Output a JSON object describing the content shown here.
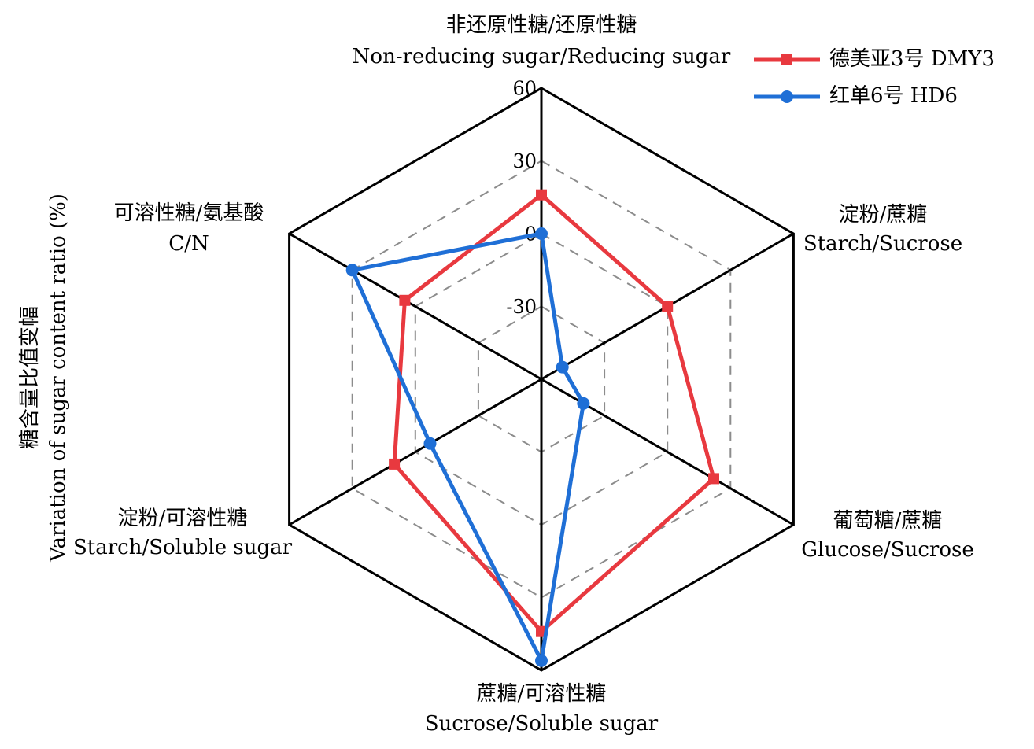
{
  "chart_data": {
    "type": "radar",
    "ylabel_cn": "糖含量比值变幅",
    "ylabel_en": "Variation of sugar content ratio (%)",
    "range": [
      -60,
      60
    ],
    "ticks": [
      "-30",
      "0",
      "30",
      "60"
    ],
    "tick_values": [
      -30,
      0,
      30,
      60
    ],
    "axes": [
      {
        "cn": "非还原性糖/还原性糖",
        "en": "Non-reducing sugar/Reducing sugar"
      },
      {
        "cn": "淀粉/蔗糖",
        "en": "Starch/Sucrose"
      },
      {
        "cn": "葡萄糖/蔗糖",
        "en": "Glucose/Sucrose"
      },
      {
        "cn": "蔗糖/可溶性糖",
        "en": "Sucrose/Soluble sugar"
      },
      {
        "cn": "淀粉/可溶性糖",
        "en": "Starch/Soluble sugar"
      },
      {
        "cn": "可溶性糖/氨基酸",
        "en": "C/N"
      }
    ],
    "series": [
      {
        "name": "德美亚3号 DMY3",
        "color": "#e8393f",
        "marker": "square",
        "values": [
          16,
          0,
          22,
          44,
          10,
          5
        ]
      },
      {
        "name": "红单6号 HD6",
        "color": "#1f6fd6",
        "marker": "circle",
        "values": [
          0,
          -50,
          -40,
          56,
          -7,
          30
        ]
      }
    ],
    "grid": "dashed",
    "legend_position": "top-right"
  }
}
